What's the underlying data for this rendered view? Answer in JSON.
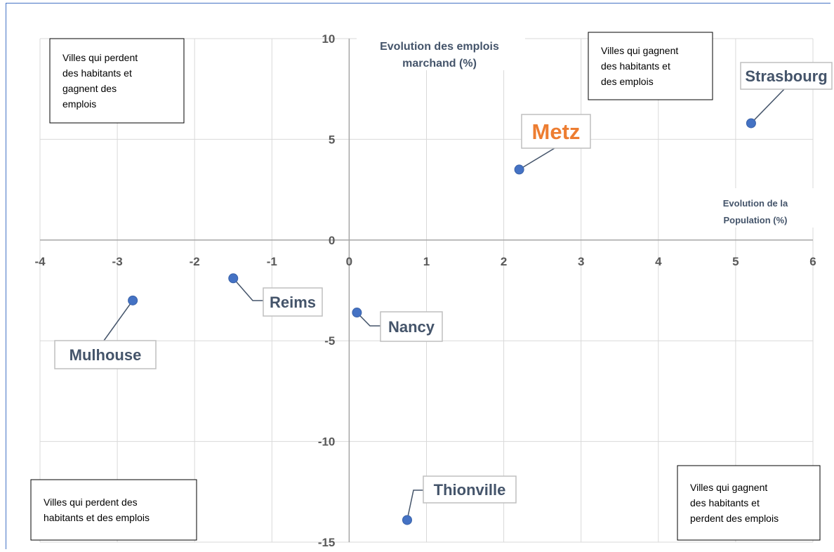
{
  "chart_data": {
    "type": "scatter",
    "title": "",
    "xlabel": [
      "Evolution de la",
      "Population (%)"
    ],
    "ylabel": [
      "Evolution des emplois",
      "marchand (%)"
    ],
    "xlim": [
      -4,
      6
    ],
    "ylim": [
      -15,
      10
    ],
    "x_ticks": [
      -4,
      -3,
      -2,
      -1,
      0,
      1,
      2,
      3,
      4,
      5,
      6
    ],
    "y_ticks": [
      10,
      5,
      0,
      -5,
      -10,
      -15
    ],
    "grid": true,
    "marker_color": "#4472c4",
    "label_color": "#44546a",
    "highlight_color": "#ed7d31",
    "points": [
      {
        "name": "Strasbourg",
        "x": 5.2,
        "y": 5.8
      },
      {
        "name": "Metz",
        "x": 2.2,
        "y": 3.5,
        "highlight": true
      },
      {
        "name": "Reims",
        "x": -1.5,
        "y": -1.9
      },
      {
        "name": "Mulhouse",
        "x": -2.8,
        "y": -3.0
      },
      {
        "name": "Nancy",
        "x": 0.1,
        "y": -3.6
      },
      {
        "name": "Thionville",
        "x": 0.75,
        "y": -13.9
      }
    ],
    "annotations": [
      {
        "id": "top-left",
        "lines": [
          "Villes qui perdent",
          "des habitants et",
          "gagnent des",
          "emplois"
        ]
      },
      {
        "id": "top-right",
        "lines": [
          "Villes qui gagnent",
          "des habitants et",
          "des emplois"
        ]
      },
      {
        "id": "bottom-left",
        "lines": [
          "Villes qui perdent des",
          "habitants et des emplois"
        ]
      },
      {
        "id": "bottom-right",
        "lines": [
          "Villes qui gagnent",
          "des habitants et",
          "perdent des emplois"
        ]
      }
    ]
  }
}
